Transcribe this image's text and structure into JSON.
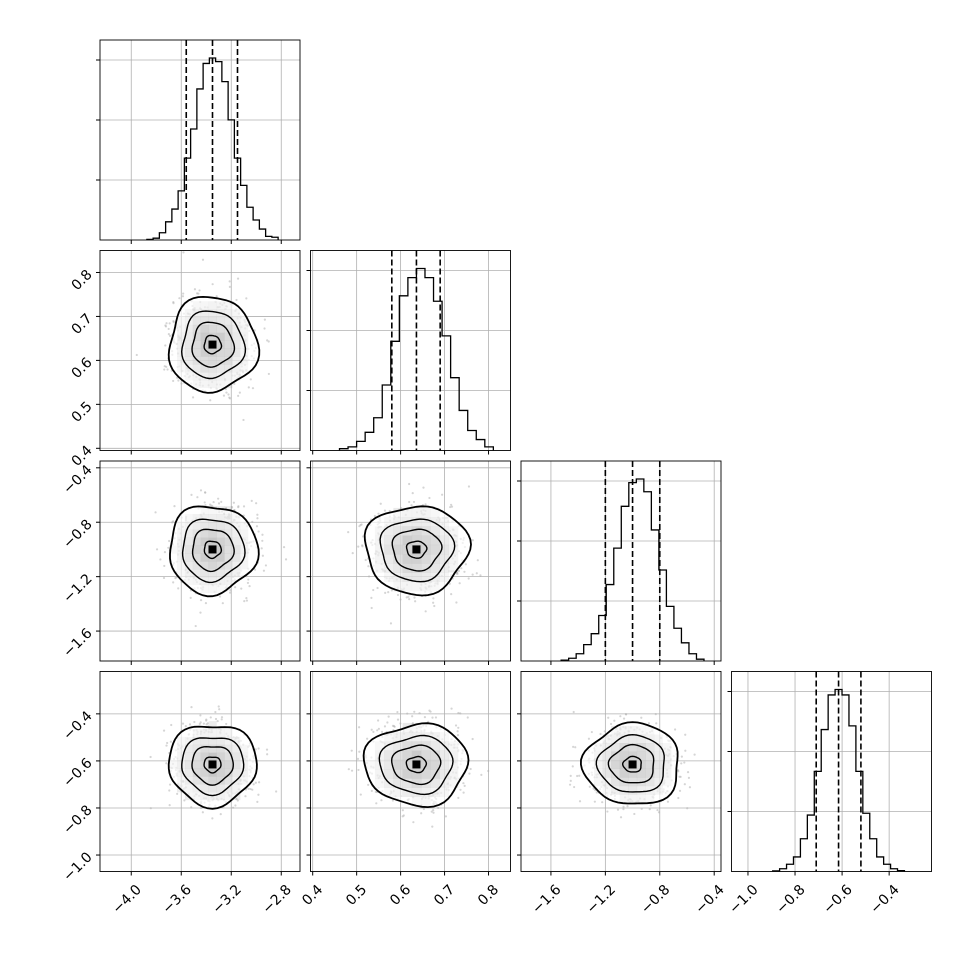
{
  "figure": {
    "type": "corner",
    "grid": true,
    "show_titles": false
  },
  "chart_data": {
    "type": "corner",
    "parameters": [
      {
        "index": 0,
        "range": [
          -4.25,
          -2.65
        ],
        "ticks": [
          -4.0,
          -3.6,
          -3.2,
          -2.8
        ],
        "tick_labels": [
          "−4.0",
          "−3.6",
          "−3.2",
          "−2.8"
        ],
        "quantiles": [
          -3.56,
          -3.35,
          -3.15
        ],
        "hist": [
          0.003,
          0.01,
          0.04,
          0.1,
          0.17,
          0.27,
          0.45,
          0.61,
          0.83,
          0.97,
          1.0,
          0.98,
          0.87,
          0.66,
          0.45,
          0.3,
          0.18,
          0.11,
          0.06,
          0.02,
          0.015
        ]
      },
      {
        "index": 1,
        "range": [
          0.395,
          0.85
        ],
        "ticks": [
          0.4,
          0.5,
          0.6,
          0.7,
          0.8
        ],
        "tick_labels": [
          "0.4",
          "0.5",
          "0.6",
          "0.7",
          "0.8"
        ],
        "quantiles": [
          0.58,
          0.636,
          0.69
        ],
        "hist": [
          0.01,
          0.02,
          0.05,
          0.1,
          0.18,
          0.36,
          0.6,
          0.85,
          0.95,
          1.0,
          0.95,
          0.82,
          0.63,
          0.4,
          0.22,
          0.11,
          0.06,
          0.02
        ]
      },
      {
        "index": 2,
        "range": [
          -1.82,
          -0.35
        ],
        "ticks": [
          -1.6,
          -1.2,
          -0.8,
          -0.4
        ],
        "tick_labels": [
          "−1.6",
          "−1.2",
          "−0.8",
          "−0.4"
        ],
        "quantiles": [
          -1.2,
          -1.0,
          -0.8
        ],
        "hist": [
          0.005,
          0.015,
          0.04,
          0.09,
          0.15,
          0.25,
          0.42,
          0.62,
          0.85,
          0.98,
          1.0,
          0.93,
          0.72,
          0.5,
          0.3,
          0.18,
          0.1,
          0.04,
          0.01
        ]
      },
      {
        "index": 3,
        "range": [
          -1.07,
          -0.22
        ],
        "ticks": [
          -1.0,
          -0.8,
          -0.6,
          -0.4
        ],
        "tick_labels": [
          "−1.0",
          "−0.8",
          "−0.6",
          "−0.4"
        ],
        "quantiles": [
          -0.71,
          -0.615,
          -0.52
        ],
        "hist": [
          0.003,
          0.015,
          0.04,
          0.08,
          0.18,
          0.31,
          0.55,
          0.78,
          0.97,
          1.0,
          0.97,
          0.8,
          0.55,
          0.32,
          0.18,
          0.08,
          0.04,
          0.015,
          0.005
        ]
      }
    ],
    "sigmas": [
      0.15,
      0.05,
      0.15,
      0.08
    ],
    "means": [
      -3.35,
      0.636,
      -1.0,
      -0.615
    ],
    "colors": {
      "line": "#000000",
      "grid": "#b0b0b0",
      "scatter": "#b3b3b3",
      "density": "#555555"
    }
  }
}
